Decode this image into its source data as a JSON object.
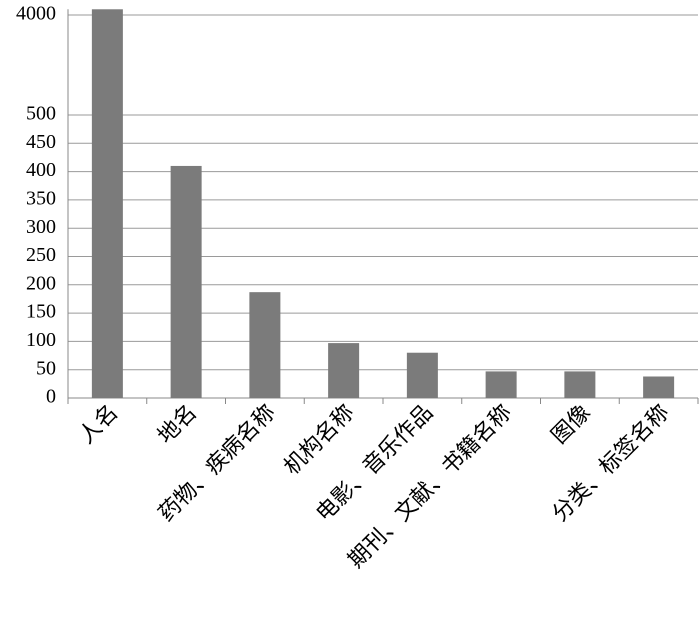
{
  "chart_data": {
    "type": "bar",
    "categories": [
      "人名",
      "地名",
      "药物、疾病名称",
      "机构名称",
      "电影、音乐作品",
      "期刊、文献、书籍名称",
      "图像",
      "分类、标签名称"
    ],
    "values": [
      4200,
      410,
      187,
      97,
      80,
      47,
      47,
      38
    ],
    "color": "#7b7b7b",
    "ylim": [
      0,
      4200
    ],
    "yticks": [
      0,
      50,
      100,
      150,
      200,
      250,
      300,
      350,
      400,
      450,
      500,
      4000
    ],
    "grid": true
  }
}
